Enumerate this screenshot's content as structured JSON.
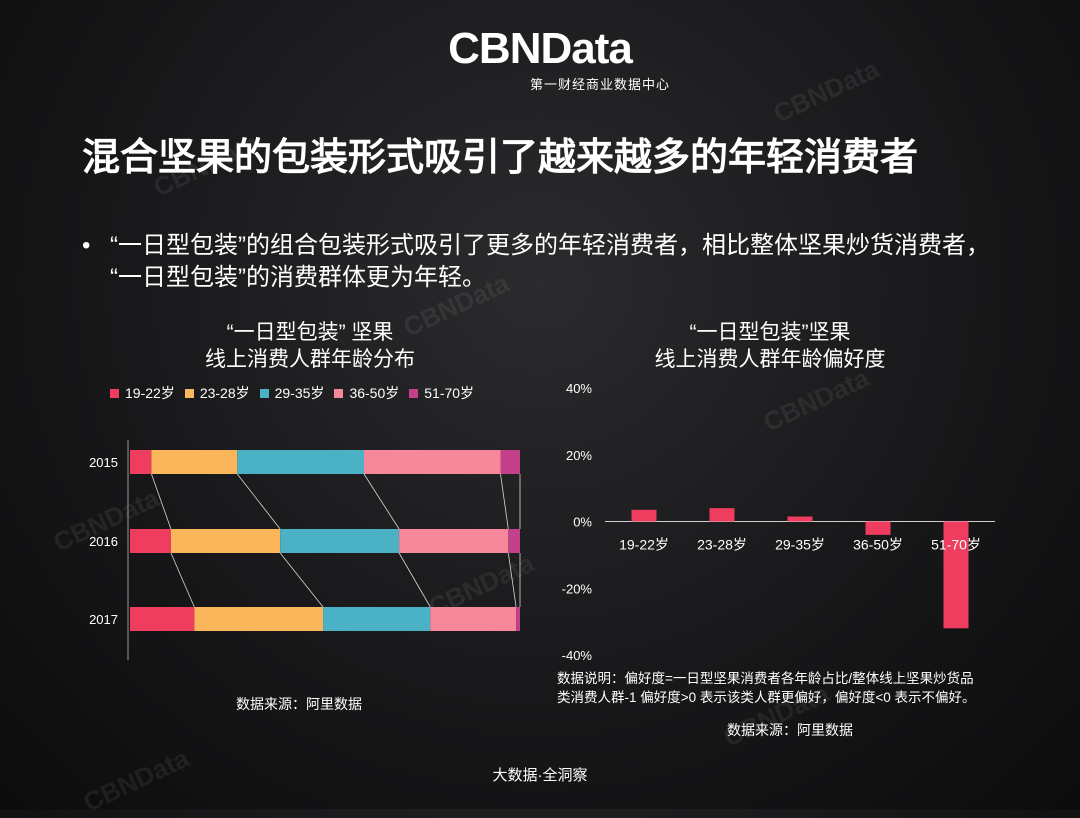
{
  "header": {
    "logo": "CBNData",
    "logo_sub": "第一财经商业数据中心",
    "title": "混合坚果的包装形式吸引了越来越多的年轻消费者"
  },
  "bullet": {
    "symbol": "•",
    "text": "“一日型包装”的组合包装形式吸引了更多的年轻消费者，相比整体坚果炒货消费者，  “一日型包装”的消费群体更为年轻。"
  },
  "watermark": "CBNData",
  "colors": {
    "19-22岁": "#ee3d5e",
    "23-28岁": "#fbb55a",
    "29-35岁": "#4bb2c5",
    "36-50岁": "#f7889b",
    "51-70岁": "#c3418a",
    "pref_bar": "#ee3d5e"
  },
  "chart_data": [
    {
      "type": "bar",
      "orientation": "horizontal-stacked-100",
      "title_line1": "“一日型包装” 坚果",
      "title_line2": "线上消费人群年龄分布",
      "categories": [
        "2015",
        "2016",
        "2017"
      ],
      "series": [
        {
          "name": "19-22岁",
          "values": [
            5.5,
            10.5,
            16.5
          ]
        },
        {
          "name": "23-28岁",
          "values": [
            22,
            28,
            33
          ]
        },
        {
          "name": "29-35岁",
          "values": [
            32.5,
            30.5,
            27.5
          ]
        },
        {
          "name": "36-50岁",
          "values": [
            35,
            28,
            22
          ]
        },
        {
          "name": "51-70岁",
          "values": [
            5,
            3,
            1
          ]
        }
      ],
      "legend": "top",
      "source": "数据来源：阿里数据"
    },
    {
      "type": "bar",
      "title_line1": "“一日型包装”坚果",
      "title_line2": "线上消费人群年龄偏好度",
      "categories": [
        "19-22岁",
        "23-28岁",
        "29-35岁",
        "36-50岁",
        "51-70岁"
      ],
      "values": [
        3.5,
        4,
        1.5,
        -4,
        -32
      ],
      "ylim": [
        -40,
        40
      ],
      "yticks": [
        "40%",
        "20%",
        "0%",
        "-20%",
        "-40%"
      ],
      "note_line1": "数据说明：偏好度=一日型坚果消费者各年龄占比/整体线上坚果炒货品",
      "note_line2": "类消费人群-1 偏好度>0 表示该类人群更偏好，偏好度<0 表示不偏好。",
      "source": "数据来源：阿里数据"
    }
  ],
  "footer": "大数据·全洞察"
}
